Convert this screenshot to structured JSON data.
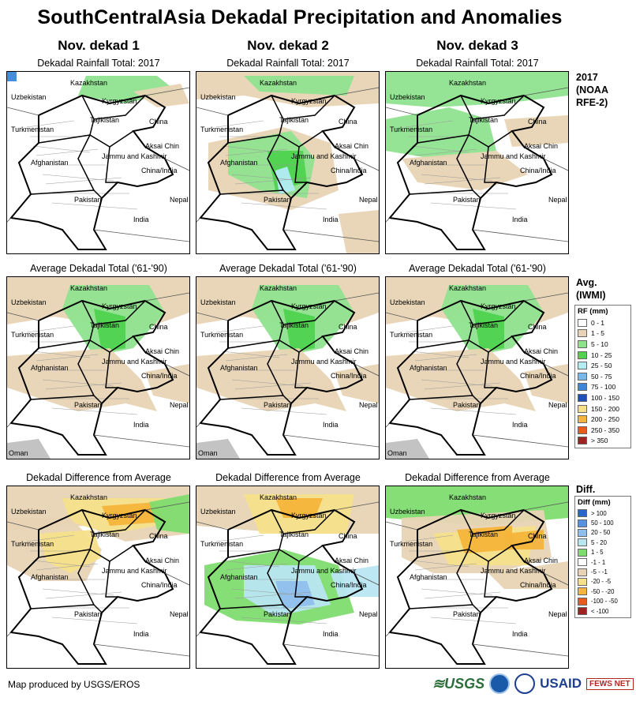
{
  "title": "SouthCentralAsia Dekadal Precipitation and Anomalies",
  "columns": [
    "Nov. dekad 1",
    "Nov. dekad 2",
    "Nov. dekad 3"
  ],
  "row_titles": {
    "rainfall": "Dekadal Rainfall Total: 2017",
    "average": "Average Dekadal Total ('61-'90)",
    "difference": "Dekadal Difference from Average"
  },
  "row_labels": {
    "rainfall": [
      "2017",
      "(NOAA",
      "RFE-2)"
    ],
    "average": [
      "Avg.",
      "(IWMI)"
    ]
  },
  "place_labels": {
    "kazakhstan": "Kazakhstan",
    "uzbekistan": "Uzbekistan",
    "kyrgyzstan": "Kyrgyzstan",
    "tajikistan": "Tajikistan",
    "china": "China",
    "turkmenistan": "Turkmenistan",
    "aksai_chin": "Aksai Chin",
    "jammu": "Jammu and Kashmir",
    "afghanistan": "Afghanistan",
    "china_india": "China/India",
    "pakistan": "Pakistan",
    "nepal": "Nepal",
    "india": "India",
    "oman": "Oman"
  },
  "rf_legend": {
    "title": "RF (mm)",
    "items": [
      {
        "label": "0 - 1",
        "color": "#ffffff"
      },
      {
        "label": "1 - 5",
        "color": "#e8d4b4"
      },
      {
        "label": "5 - 10",
        "color": "#8fe38f"
      },
      {
        "label": "10 - 25",
        "color": "#4fd24f"
      },
      {
        "label": "25 - 50",
        "color": "#b4ecf4"
      },
      {
        "label": "50 - 75",
        "color": "#7ab8e8"
      },
      {
        "label": "75 - 100",
        "color": "#3f86d8"
      },
      {
        "label": "100 - 150",
        "color": "#1f4fb8"
      },
      {
        "label": "150 - 200",
        "color": "#f6e08a"
      },
      {
        "label": "200 - 250",
        "color": "#f5b43a"
      },
      {
        "label": "250 - 350",
        "color": "#ea5a1a"
      },
      {
        "label": "> 350",
        "color": "#a32020"
      }
    ]
  },
  "diff_legend": {
    "heading": "Diff.",
    "title": "Diff (mm)",
    "items": [
      {
        "label": "> 100",
        "color": "#2a64d0"
      },
      {
        "label": "50 - 100",
        "color": "#5592e0"
      },
      {
        "label": "20 - 50",
        "color": "#8fbfec"
      },
      {
        "label": "5 - 20",
        "color": "#b8e6f2"
      },
      {
        "label": "1 - 5",
        "color": "#7fdc6f"
      },
      {
        "label": "-1 - 1",
        "color": "#ffffff"
      },
      {
        "label": "-5 - -1",
        "color": "#e8d4b4"
      },
      {
        "label": "-20 - -5",
        "color": "#f6e08a"
      },
      {
        "label": "-50 - -20",
        "color": "#f5b43a"
      },
      {
        "label": "-100 - -50",
        "color": "#ea5a1a"
      },
      {
        "label": "< -100",
        "color": "#a32020"
      }
    ]
  },
  "footer": "Map produced by USGS/EROS",
  "logos": {
    "usgs": "≋USGS",
    "usaid": "USAID",
    "fews": "FEWS NET"
  }
}
